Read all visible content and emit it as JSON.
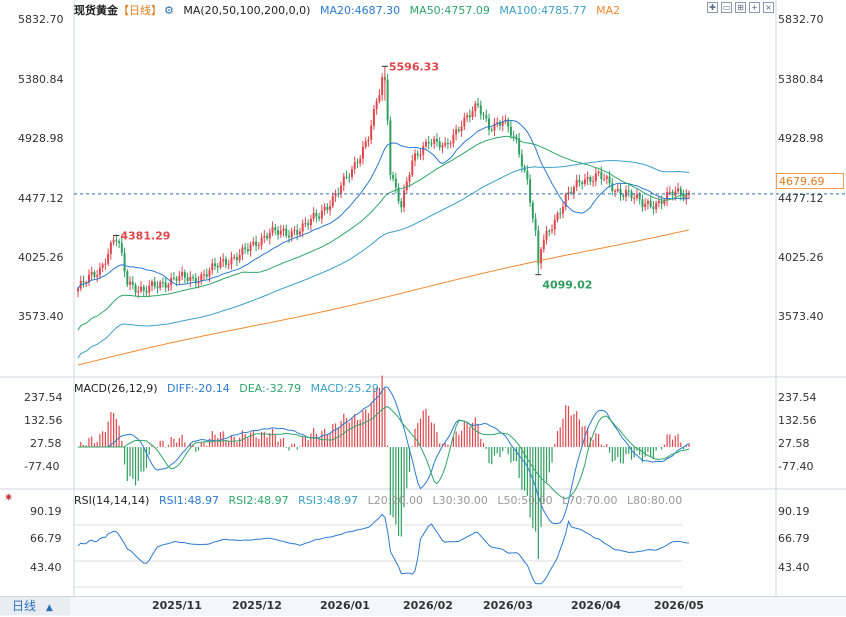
{
  "main_header": {
    "symbol": "现货黄金",
    "period": "【日线】",
    "ma_params": "MA(20,50,100,200,0,0)",
    "ma20": "MA20:4687.30",
    "ma50": "MA50:4757.09",
    "ma100": "MA100:4785.77",
    "ma2": "MA2"
  },
  "macd_header": {
    "title": "MACD(26,12,9)",
    "diff": "DIFF:-20.14",
    "dea": "DEA:-32.79",
    "macd": "MACD:25.29"
  },
  "rsi_header": {
    "title": "RSI(14,14,14)",
    "rsi1": "RSI1:48.97",
    "rsi2": "RSI2:48.97",
    "rsi3": "RSI3:48.97",
    "l20": "L20:20.00",
    "l30": "L30:30.00",
    "l50": "L50:50.00",
    "l70": "L70:70.00",
    "l80": "L80:80.00"
  },
  "price_axis": [
    "5832.70",
    "5380.84",
    "4928.98",
    "4477.12",
    "4025.26",
    "3573.40"
  ],
  "macd_axis": [
    "237.54",
    "132.56",
    "27.58",
    "-77.40"
  ],
  "rsi_axis": [
    "90.19",
    "66.79",
    "43.40"
  ],
  "current_price": "4679.69",
  "annotations": {
    "high": "5596.33",
    "low_left": "4381.29",
    "low_right": "4099.02"
  },
  "x_labels": [
    "2025/11",
    "2025/12",
    "2026/01",
    "2026/02",
    "2026/03",
    "2026/04",
    "2026/05"
  ],
  "period_button": "日线",
  "period_arrow": "▲",
  "colors": {
    "up": "#e0474c",
    "down": "#2f9e5f",
    "ma20": "#2b7bd0",
    "ma50": "#2fa66a",
    "ma100": "#3aa0c8",
    "ma200": "#f08a30",
    "accent": "#2a6fb8"
  },
  "toolbar_icons": [
    "zoom-in-icon",
    "zoom-out-icon",
    "fullscreen-icon",
    "add-icon",
    "close-icon"
  ],
  "chart_data": {
    "type": "candlestick",
    "ylim": [
      3400,
      5900
    ],
    "series_names": [
      "MA20",
      "MA50",
      "MA100",
      "MA2"
    ],
    "close_anchors": [
      [
        0,
        4000
      ],
      [
        8,
        4140
      ],
      [
        14,
        4381
      ],
      [
        18,
        4050
      ],
      [
        24,
        3980
      ],
      [
        30,
        4030
      ],
      [
        36,
        4080
      ],
      [
        42,
        4060
      ],
      [
        50,
        4150
      ],
      [
        58,
        4240
      ],
      [
        64,
        4300
      ],
      [
        70,
        4420
      ],
      [
        76,
        4380
      ],
      [
        82,
        4450
      ],
      [
        88,
        4520
      ],
      [
        94,
        4680
      ],
      [
        100,
        4840
      ],
      [
        106,
        5100
      ],
      [
        110,
        5400
      ],
      [
        112,
        5596
      ],
      [
        114,
        4850
      ],
      [
        118,
        4600
      ],
      [
        122,
        4900
      ],
      [
        128,
        5080
      ],
      [
        134,
        5000
      ],
      [
        140,
        5200
      ],
      [
        146,
        5300
      ],
      [
        150,
        5170
      ],
      [
        155,
        5200
      ],
      [
        160,
        5050
      ],
      [
        164,
        4780
      ],
      [
        168,
        4250
      ],
      [
        172,
        4420
      ],
      [
        178,
        4650
      ],
      [
        184,
        4780
      ],
      [
        190,
        4820
      ],
      [
        196,
        4700
      ],
      [
        200,
        4700
      ],
      [
        206,
        4600
      ],
      [
        212,
        4620
      ],
      [
        218,
        4690
      ],
      [
        222,
        4680
      ]
    ]
  }
}
